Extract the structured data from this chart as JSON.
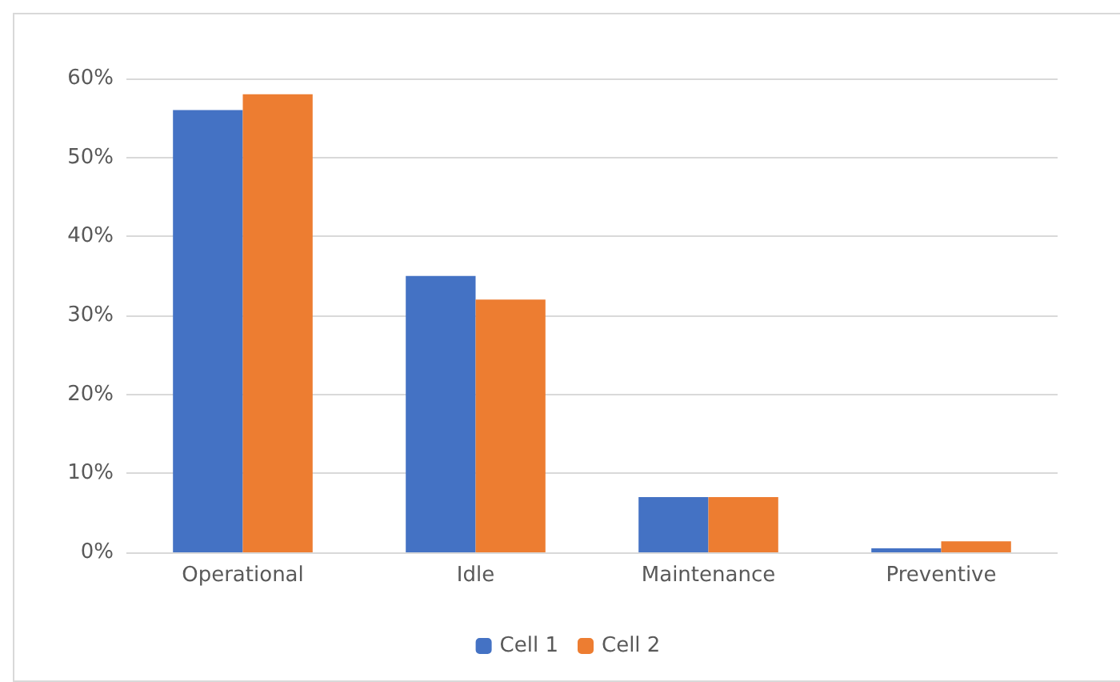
{
  "chart_data": {
    "type": "bar",
    "categories": [
      "Operational",
      "Idle",
      "Maintenance",
      "Preventive"
    ],
    "series": [
      {
        "name": "Cell 1",
        "color": "#4472c4",
        "values": [
          0.56,
          0.35,
          0.07,
          0.005
        ]
      },
      {
        "name": "Cell 2",
        "color": "#ed7d31",
        "values": [
          0.58,
          0.32,
          0.07,
          0.014
        ]
      }
    ],
    "ylim": [
      0,
      0.6
    ],
    "yticks": [
      {
        "value": 0,
        "label": "0%"
      },
      {
        "value": 0.1,
        "label": "10%"
      },
      {
        "value": 0.2,
        "label": "20%"
      },
      {
        "value": 0.3,
        "label": "30%"
      },
      {
        "value": 0.4,
        "label": "40%"
      },
      {
        "value": 0.5,
        "label": "50%"
      },
      {
        "value": 0.6,
        "label": "60%"
      }
    ],
    "grid": "y",
    "legend": "bottom"
  }
}
